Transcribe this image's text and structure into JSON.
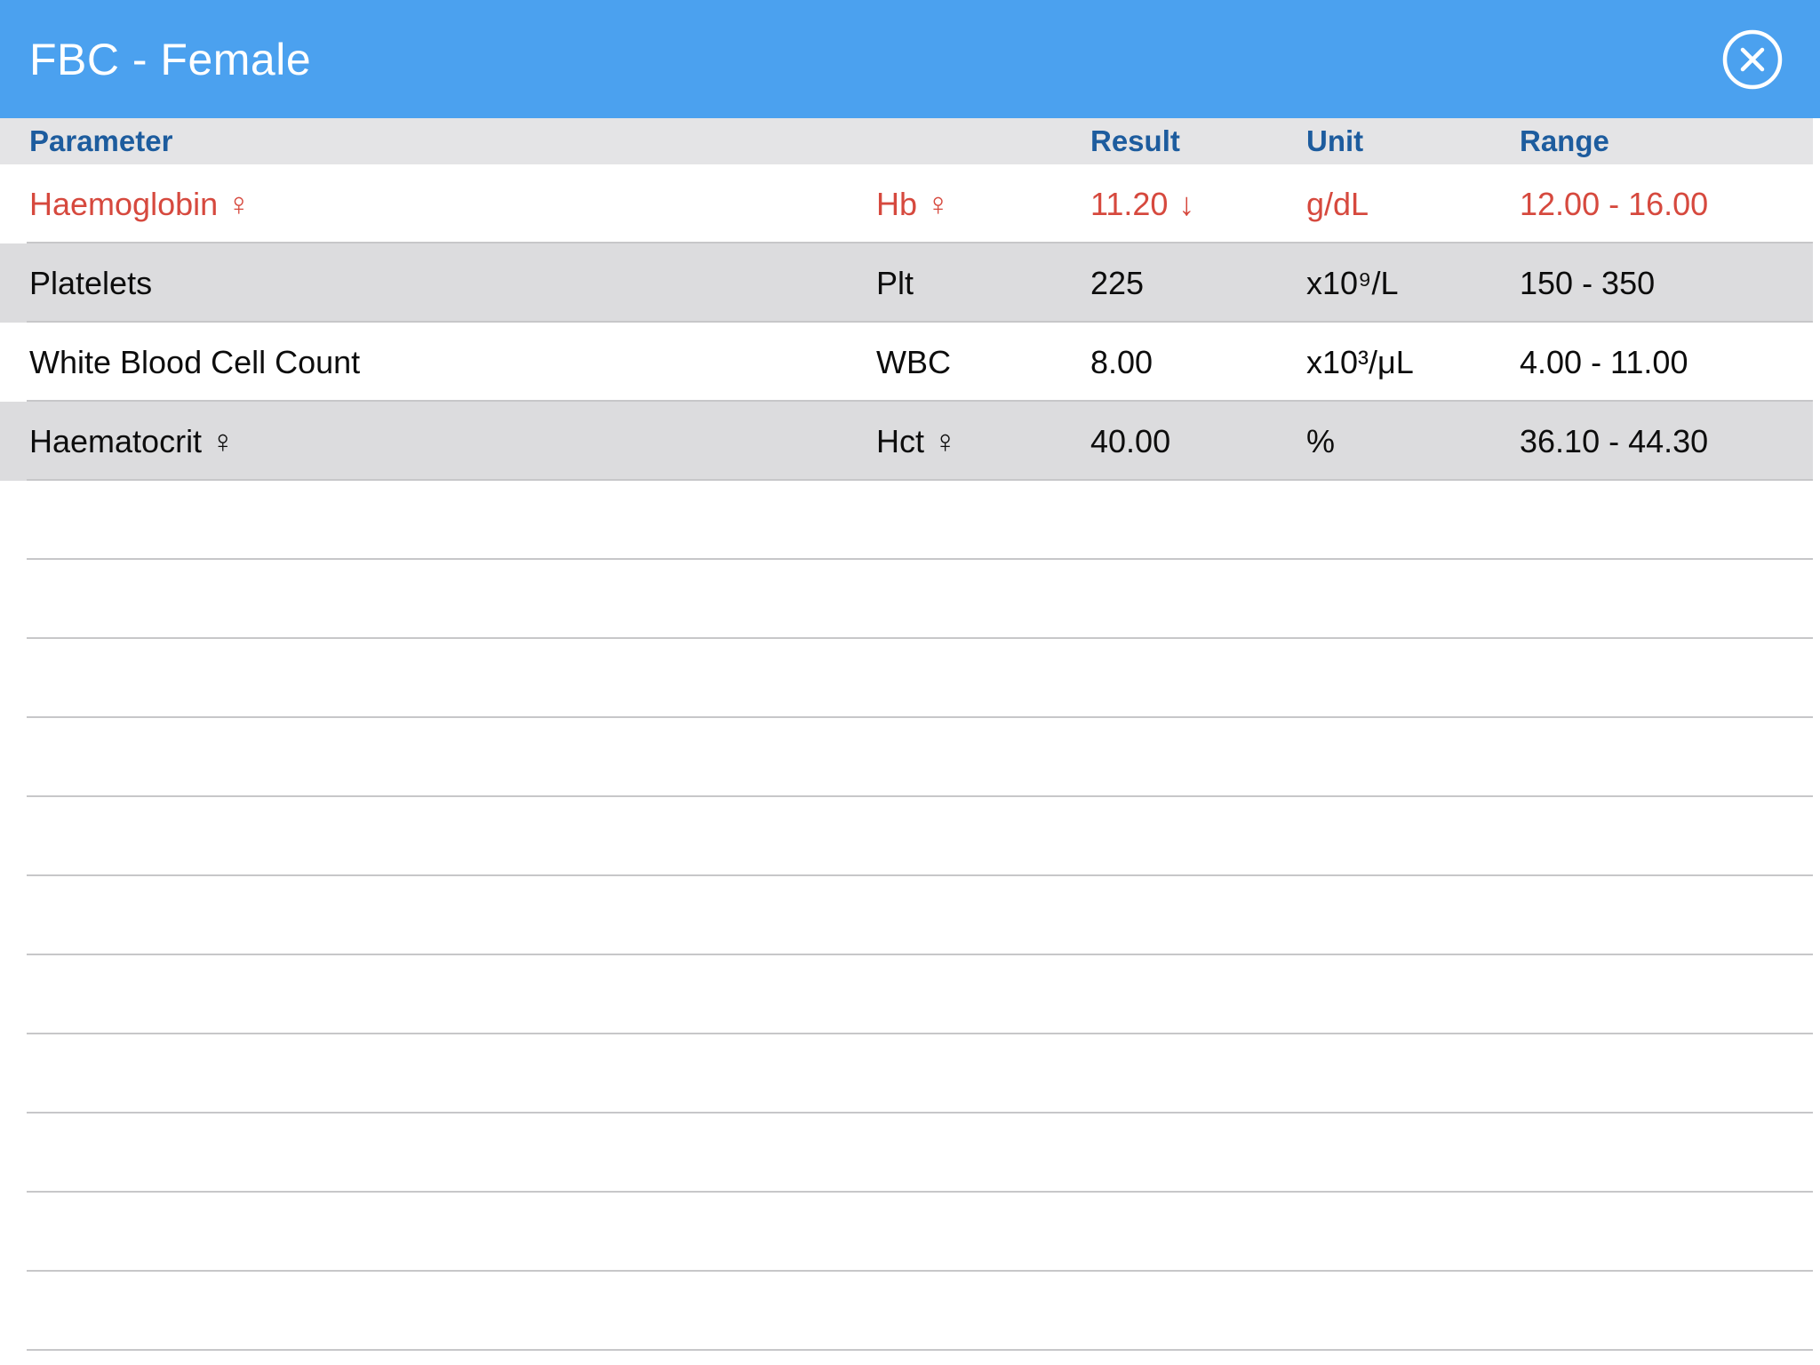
{
  "window": {
    "title": "FBC - Female",
    "close_icon": "close-circle-icon"
  },
  "colors": {
    "title_bar_bg": "#4BA1EF",
    "title_text": "#FFFFFF",
    "column_header_bg": "#E4E4E6",
    "column_header_text": "#1D5C9E",
    "row_alt_bg": "#DCDCDE",
    "row_bg": "#FFFFFF",
    "abnormal_text": "#D6493E",
    "normal_text": "#0D0D0D",
    "separator": "#C7C7C9"
  },
  "table": {
    "columns": [
      "Parameter",
      "Result",
      "Unit",
      "Range"
    ],
    "rows": [
      {
        "parameter": "Haemoglobin",
        "sex_symbol": "♀",
        "abbrev": "Hb",
        "abbrev_symbol": "♀",
        "result": "11.20",
        "flag": "↓",
        "unit": "g/dL",
        "range": "12.00 - 16.00",
        "status": "low"
      },
      {
        "parameter": "Platelets",
        "abbrev": "Plt",
        "result": "225",
        "unit": "x10⁹/L",
        "range": "150 - 350",
        "status": "normal"
      },
      {
        "parameter": "White Blood Cell Count",
        "abbrev": "WBC",
        "result": "8.00",
        "unit": "x10³/μL",
        "range": "4.00 - 11.00",
        "status": "normal"
      },
      {
        "parameter": "Haematocrit",
        "sex_symbol": "♀",
        "abbrev": "Hct",
        "abbrev_symbol": "♀",
        "result": "40.00",
        "unit": "%",
        "range": "36.10 - 44.30",
        "status": "normal"
      }
    ],
    "empty_row_count": 11
  }
}
